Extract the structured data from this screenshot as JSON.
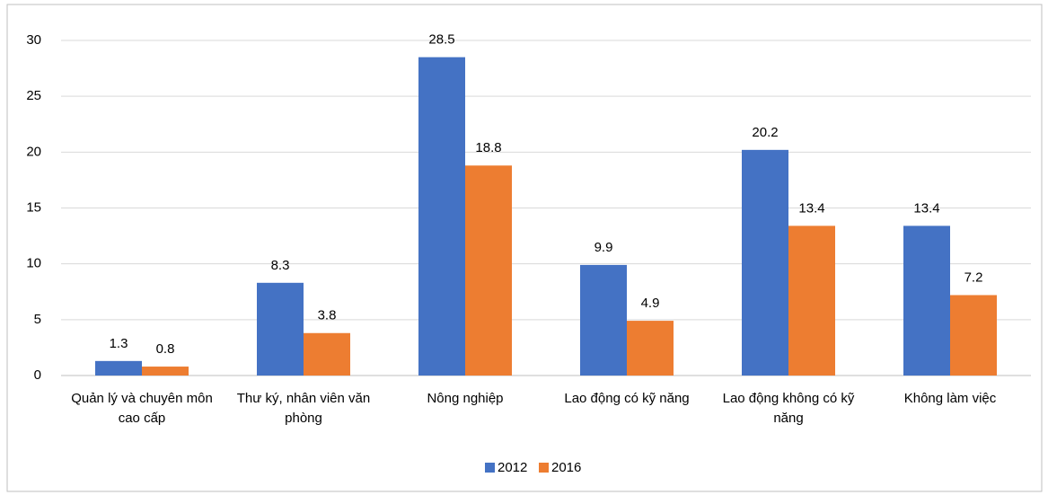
{
  "chart_data": {
    "type": "bar",
    "categories": [
      "Quản lý và chuyên môn cao cấp",
      "Thư ký, nhân viên văn phòng",
      "Nông nghiệp",
      "Lao động có kỹ năng",
      "Lao động không có kỹ năng",
      "Không làm việc"
    ],
    "series": [
      {
        "name": "2012",
        "color": "#4472c4",
        "values": [
          1.3,
          8.3,
          28.5,
          9.9,
          20.2,
          13.4
        ]
      },
      {
        "name": "2016",
        "color": "#ed7d31",
        "values": [
          0.8,
          3.8,
          18.8,
          4.9,
          13.4,
          7.2
        ]
      }
    ],
    "ylim": [
      0,
      30
    ],
    "yticks": [
      0,
      5,
      10,
      15,
      20,
      25,
      30
    ],
    "grid": true,
    "legend": "bottom"
  }
}
